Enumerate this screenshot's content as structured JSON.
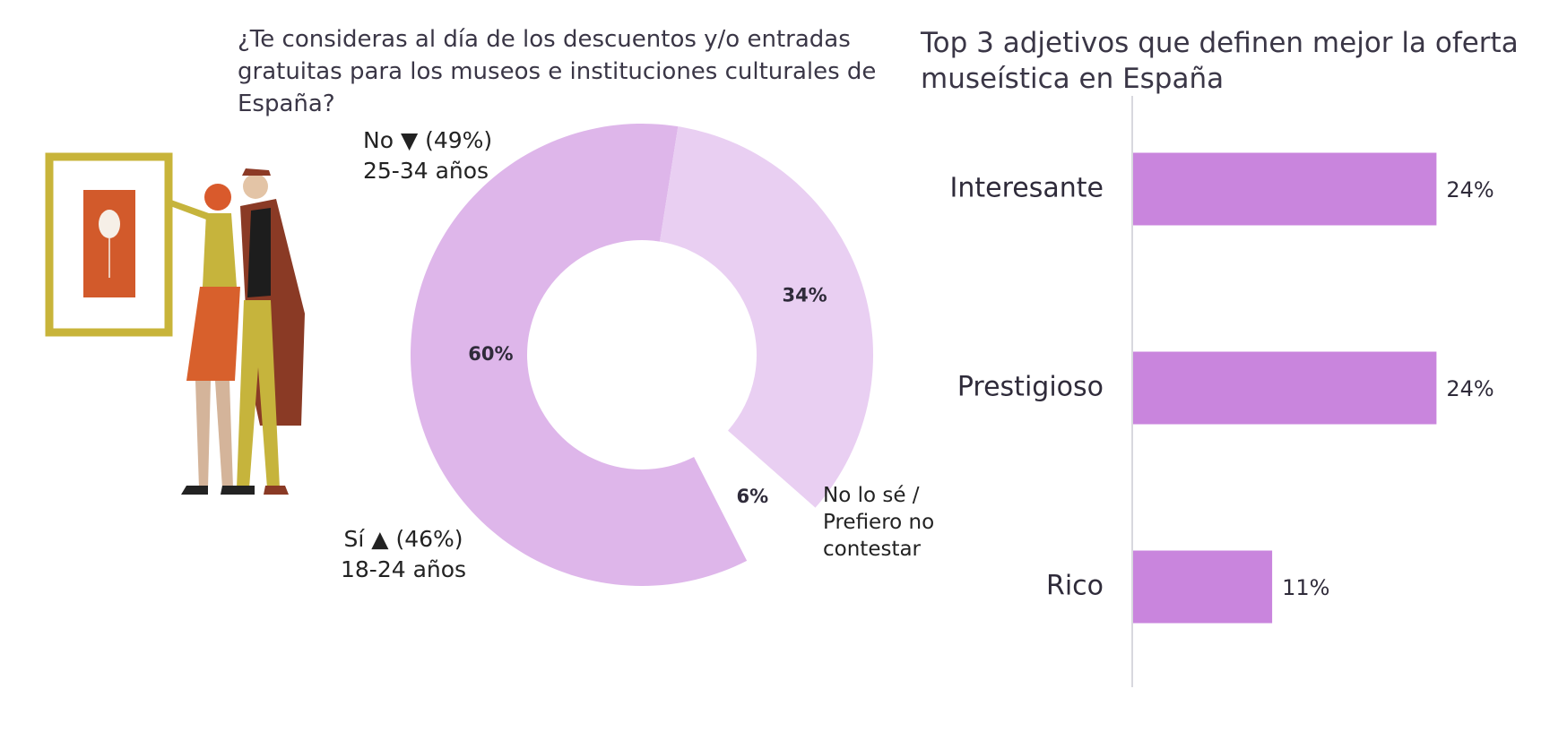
{
  "left_title": "¿Te consideras al día de los descuentos y/o entradas gratuitas para los museos e instituciones culturales de España?",
  "right_title": "Top 3 adjetivos que definen mejor la oferta museística en España",
  "annotations": {
    "no": "No ▼ (49%)\n25-34 años",
    "si": "Sí ▲ (46%)\n18-24 años",
    "ns": "No lo sé /\nPrefiero no\ncontestar"
  },
  "colors": {
    "donut_no": "#deb6ea",
    "donut_si": "#e9cff2",
    "bar": "#c985dd",
    "axis": "#d8d8de"
  },
  "chart_data": [
    {
      "type": "pie",
      "title": "¿Te consideras al día de los descuentos y/o entradas gratuitas para los museos e instituciones culturales de España?",
      "categories": [
        "No",
        "Sí",
        "No lo sé / Prefiero no contestar"
      ],
      "values": [
        60,
        34,
        6
      ],
      "labels": [
        "60%",
        "34%",
        "6%"
      ]
    },
    {
      "type": "bar",
      "orientation": "horizontal",
      "title": "Top 3 adjetivos que definen mejor la oferta museística en España",
      "categories": [
        "Interesante",
        "Prestigioso",
        "Rico"
      ],
      "values": [
        24,
        24,
        11
      ],
      "labels": [
        "24%",
        "24%",
        "11%"
      ]
    }
  ]
}
